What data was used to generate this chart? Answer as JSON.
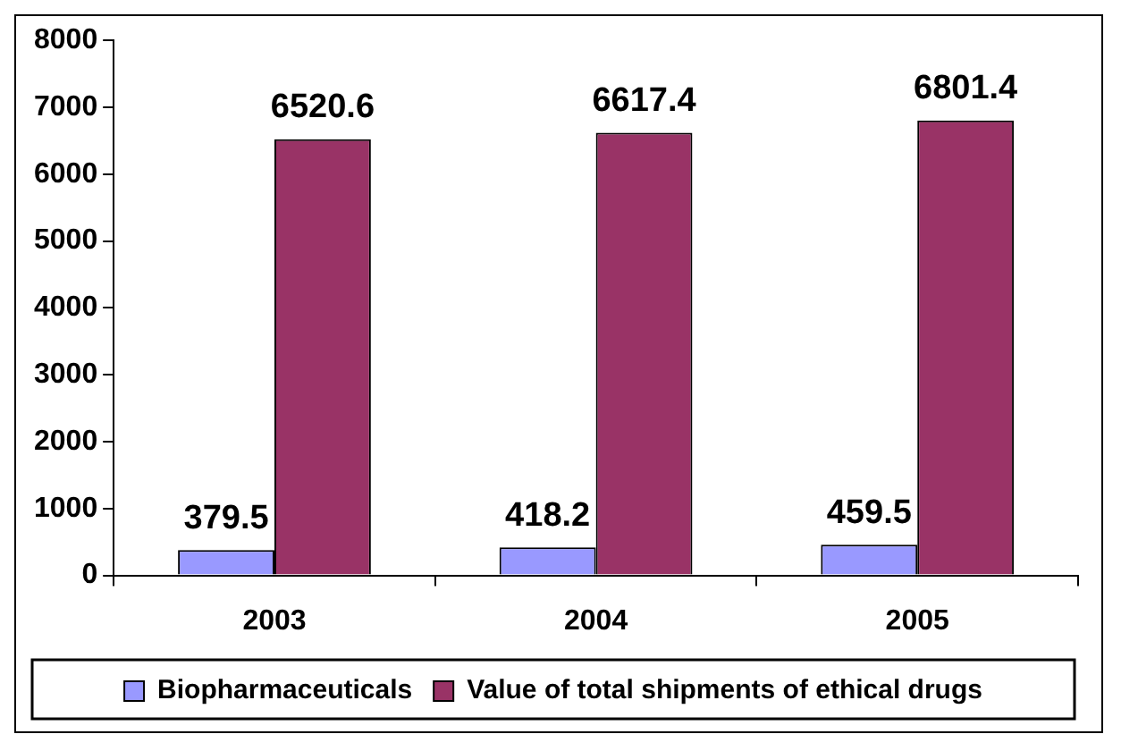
{
  "chart_data": {
    "type": "bar",
    "categories": [
      "2003",
      "2004",
      "2005"
    ],
    "series": [
      {
        "name": "Biopharmaceuticals",
        "color": "#9999ff",
        "values": [
          379.5,
          418.2,
          459.5
        ]
      },
      {
        "name": "Value of total shipments of ethical drugs",
        "color": "#993366",
        "values": [
          6520.6,
          6617.4,
          6801.4
        ]
      }
    ],
    "ylim": [
      0,
      8000
    ],
    "yticks": [
      0,
      1000,
      2000,
      3000,
      4000,
      5000,
      6000,
      7000,
      8000
    ],
    "grid": false,
    "legend": "bottom",
    "data_labels": true
  }
}
